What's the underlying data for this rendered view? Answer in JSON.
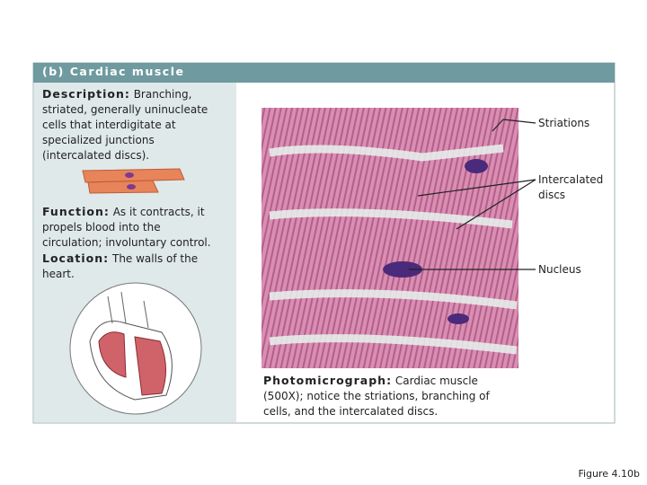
{
  "header": {
    "title": "(b) Cardiac muscle"
  },
  "description": {
    "label": "Description:",
    "text": "Branching, striated, generally uninucleate cells that interdigitate at specialized junctions (intercalated discs)."
  },
  "function": {
    "label": "Function:",
    "text": "As it contracts, it propels blood into the circulation; involuntary control."
  },
  "location": {
    "label": "Location:",
    "text": "The walls of the heart."
  },
  "labels": [
    "Striations",
    "Intercalated discs",
    "Nucleus"
  ],
  "caption": {
    "label": "Photomicrograph:",
    "text": "Cardiac muscle (500X); notice the striations, branching of cells, and the intercalated discs."
  },
  "figure": "Figure 4.10b"
}
